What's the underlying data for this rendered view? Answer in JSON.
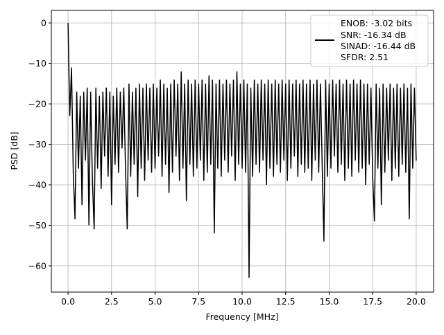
{
  "chart_data": {
    "type": "line",
    "title": "",
    "xlabel": "Frequency [MHz]",
    "ylabel": "PSD [dB]",
    "xlim": [
      -0.96,
      21.0
    ],
    "ylim": [
      -66.5,
      3.1
    ],
    "grid": true,
    "xticks": [
      "0.0",
      "2.5",
      "5.0",
      "7.5",
      "10.0",
      "12.5",
      "15.0",
      "17.5",
      "20.0"
    ],
    "xtick_values": [
      0,
      2.5,
      5,
      7.5,
      10,
      12.5,
      15,
      17.5,
      20
    ],
    "yticks": [
      "0",
      "−10",
      "−20",
      "−30",
      "−40",
      "−50",
      "−60"
    ],
    "ytick_values": [
      0,
      -10,
      -20,
      -30,
      -40,
      -50,
      -60
    ],
    "legend": {
      "placement": "top-right",
      "entries": [
        "ENOB: -3.02 bits",
        "SNR: -16.34 dB",
        "SINAD: -16.44 dB",
        "SFDR: 2.51"
      ]
    },
    "series": [
      {
        "color": "#000000",
        "x_range": [
          0,
          20
        ],
        "values": [
          0,
          -23,
          -11,
          -37,
          -48.5,
          -17,
          -36,
          -18,
          -45,
          -17,
          -34,
          -16,
          -50,
          -17,
          -39,
          -51,
          -16,
          -36,
          -18,
          -41,
          -17,
          -33,
          -16,
          -38,
          -17,
          -45,
          -18,
          -35,
          -16,
          -37,
          -17,
          -31,
          -16,
          -36,
          -51,
          -15,
          -38,
          -17,
          -35,
          -16,
          -43,
          -15,
          -36,
          -16,
          -39,
          -15,
          -34,
          -16,
          -37,
          -15,
          -36,
          -16,
          -33,
          -14,
          -38,
          -15,
          -35,
          -16,
          -42,
          -15,
          -37,
          -14,
          -33,
          -15,
          -39,
          -12,
          -36,
          -15,
          -44,
          -14,
          -35,
          -15,
          -38,
          -14,
          -36,
          -15,
          -34,
          -14,
          -39,
          -15,
          -37,
          -13,
          -35,
          -14,
          -52,
          -15,
          -36,
          -14,
          -38,
          -15,
          -34,
          -14,
          -37,
          -15,
          -33,
          -14,
          -39,
          -12,
          -35,
          -15,
          -36,
          -14,
          -37,
          -15,
          -63,
          -16,
          -38,
          -14,
          -35,
          -15,
          -37,
          -14,
          -34,
          -15,
          -40,
          -14,
          -36,
          -15,
          -38,
          -14,
          -35,
          -15,
          -37,
          -14,
          -34,
          -15,
          -39,
          -14,
          -36,
          -15,
          -33,
          -14,
          -38,
          -15,
          -35,
          -14,
          -37,
          -15,
          -36,
          -14,
          -39,
          -15,
          -34,
          -14,
          -37,
          -15,
          -35,
          -54,
          -14,
          -38,
          -15,
          -36,
          -14,
          -33,
          -15,
          -37,
          -14,
          -35,
          -15,
          -39,
          -14,
          -36,
          -15,
          -38,
          -14,
          -34,
          -15,
          -37,
          -14,
          -36,
          -15,
          -40,
          -15,
          -35,
          -16,
          -38,
          -49,
          -15,
          -36,
          -16,
          -45,
          -15,
          -37,
          -16,
          -34,
          -15,
          -39,
          -16,
          -36,
          -15,
          -38,
          -16,
          -35,
          -15,
          -37,
          -16,
          -48.5,
          -15,
          -36,
          -16,
          -34
        ]
      }
    ]
  }
}
